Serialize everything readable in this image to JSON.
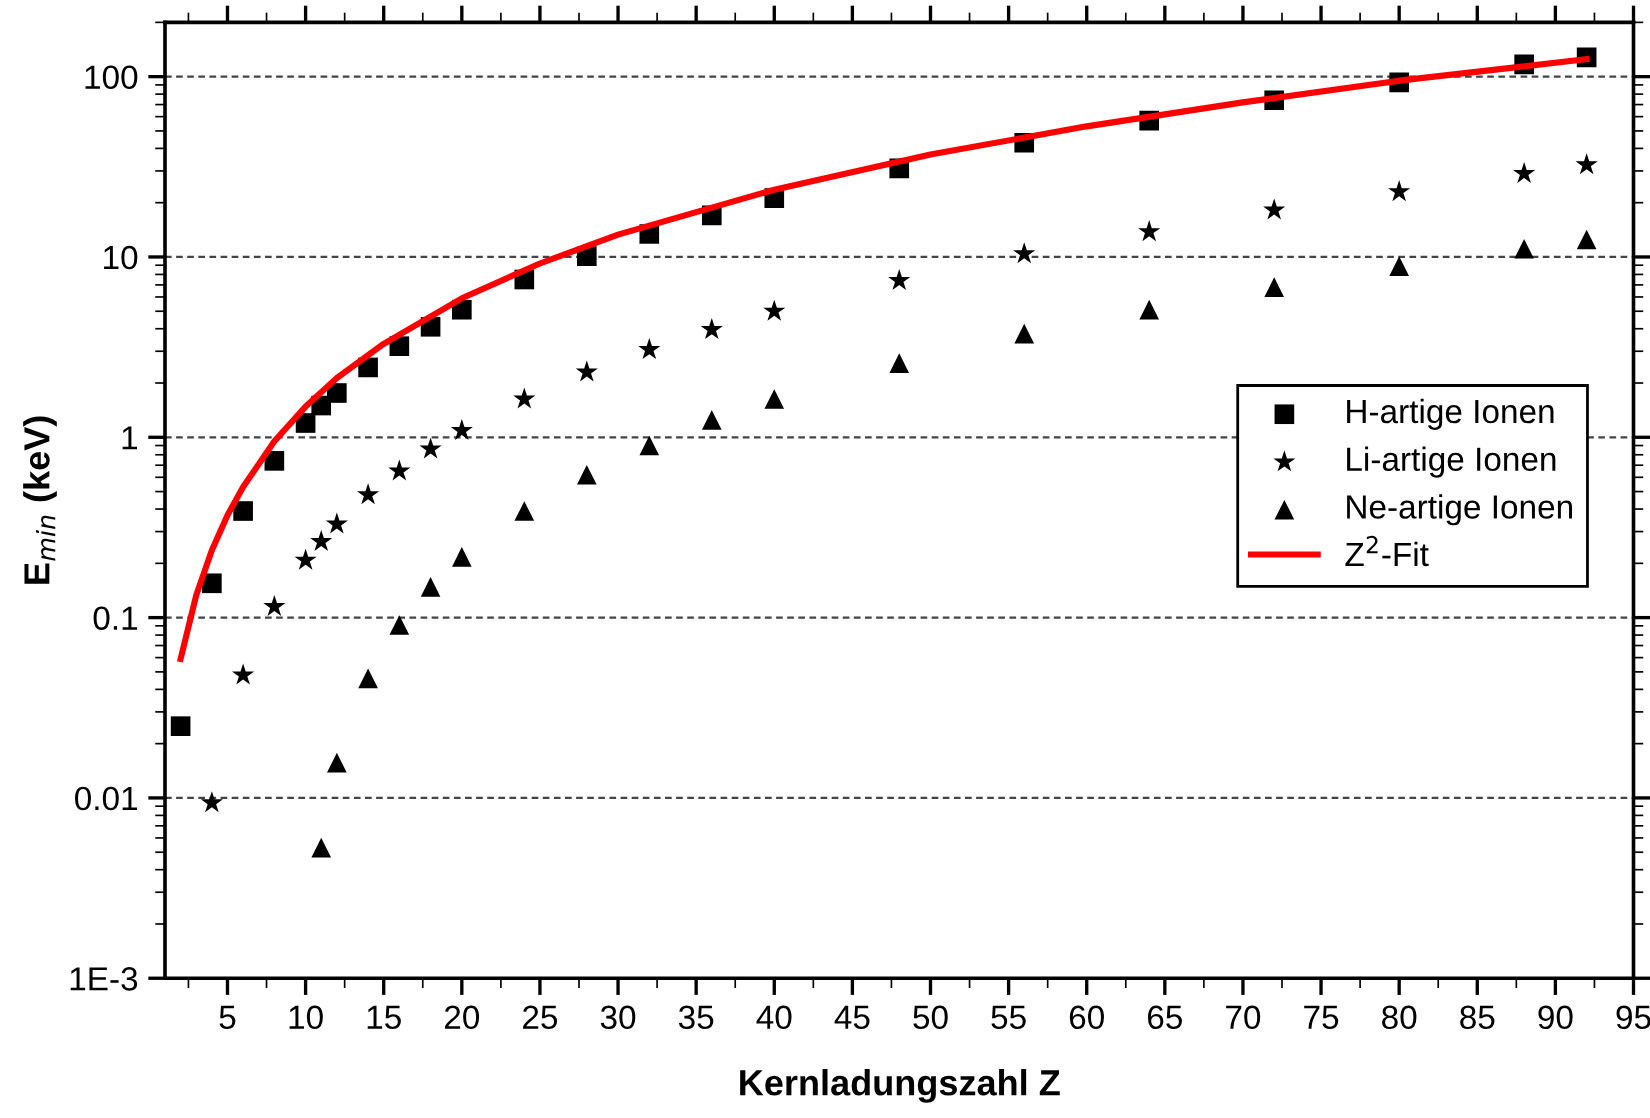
{
  "chart_data": {
    "type": "scatter",
    "xlabel": "Kernladungszahl Z",
    "ylabel": "E$_{min}$ (keV)",
    "log": "y",
    "xlim": [
      1,
      95
    ],
    "xticks": [
      5,
      10,
      15,
      20,
      25,
      30,
      35,
      40,
      45,
      50,
      55,
      60,
      65,
      70,
      75,
      80,
      85,
      90,
      95
    ],
    "ylim": [
      0.001,
      200
    ],
    "yticks": [
      {
        "value": 0.001,
        "label": "1E-3"
      },
      0.01,
      0.1,
      1,
      10,
      100
    ],
    "grid": "y",
    "legend": "right",
    "series": [
      {
        "name": "H-artige Ionen",
        "marker": "square",
        "color": "#000000",
        "x": [
          2,
          4,
          6,
          8,
          10,
          11,
          12,
          14,
          16,
          18,
          20,
          24,
          28,
          32,
          36,
          40,
          48,
          56,
          64,
          72,
          80,
          88,
          92
        ],
        "values": [
          0.025,
          0.155,
          0.39,
          0.74,
          1.2,
          1.5,
          1.76,
          2.44,
          3.2,
          4.1,
          5.1,
          7.5,
          10.1,
          13.4,
          17,
          21.2,
          31,
          43,
          57,
          74,
          93,
          117,
          128
        ]
      },
      {
        "name": "Li-artige Ionen",
        "marker": "star",
        "color": "#000000",
        "x": [
          4,
          6,
          8,
          10,
          11,
          12,
          14,
          16,
          18,
          20,
          24,
          28,
          32,
          36,
          40,
          48,
          56,
          64,
          72,
          80,
          88,
          92
        ],
        "values": [
          0.0094,
          0.048,
          0.115,
          0.208,
          0.264,
          0.33,
          0.48,
          0.65,
          0.86,
          1.09,
          1.63,
          2.3,
          3.06,
          3.95,
          5.0,
          7.4,
          10.4,
          13.8,
          18.2,
          23,
          29,
          32.4
        ]
      },
      {
        "name": "Ne-artige Ionen",
        "marker": "triangle",
        "color": "#000000",
        "x": [
          11,
          12,
          14,
          16,
          18,
          20,
          24,
          28,
          32,
          36,
          40,
          48,
          56,
          64,
          72,
          80,
          88,
          92
        ],
        "values": [
          0.0053,
          0.0157,
          0.046,
          0.091,
          0.148,
          0.217,
          0.39,
          0.62,
          0.9,
          1.25,
          1.63,
          2.58,
          3.76,
          5.1,
          6.8,
          8.9,
          11.1,
          12.5
        ]
      },
      {
        "name": "Z$^{2}$-Fit",
        "type": "line",
        "marker": "none",
        "line_style": "solid",
        "color": "#ff0000",
        "x": [
          2,
          3,
          4,
          5,
          6,
          8,
          10,
          12,
          15,
          20,
          25,
          30,
          40,
          50,
          60,
          70,
          80,
          92
        ],
        "values": [
          0.059,
          0.133,
          0.236,
          0.37,
          0.53,
          0.95,
          1.48,
          2.13,
          3.3,
          5.9,
          9.2,
          13.3,
          23.6,
          37,
          53,
          72,
          95,
          125
        ]
      }
    ]
  }
}
